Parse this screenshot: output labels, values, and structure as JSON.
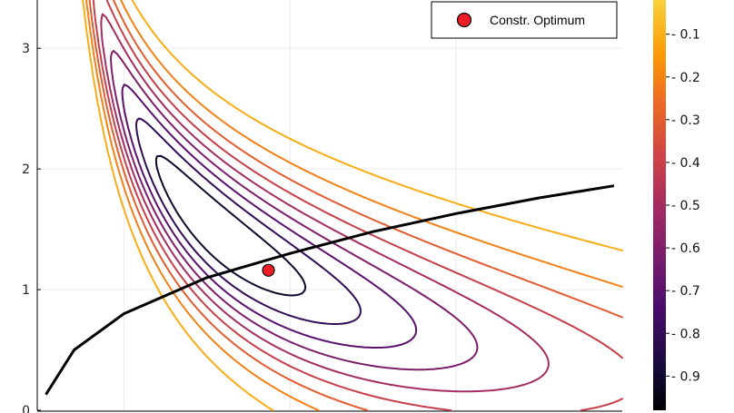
{
  "chart_data": {
    "type": "contour",
    "title": "",
    "xlabel": "",
    "ylabel": "",
    "ylim": [
      0,
      3.4
    ],
    "xlim": [
      0,
      3.5
    ],
    "grid": true,
    "y_ticks": [
      {
        "value": 0,
        "label": "0"
      },
      {
        "value": 1,
        "label": "1"
      },
      {
        "value": 2,
        "label": "2"
      },
      {
        "value": 3,
        "label": "3"
      }
    ],
    "colorbar": {
      "range": [
        -0.98,
        -0.02
      ],
      "ticks": [
        {
          "value": -0.1,
          "label": "- 0.1"
        },
        {
          "value": -0.2,
          "label": "- 0.2"
        },
        {
          "value": -0.3,
          "label": "- 0.3"
        },
        {
          "value": -0.4,
          "label": "- 0.4"
        },
        {
          "value": -0.5,
          "label": "- 0.5"
        },
        {
          "value": -0.6,
          "label": "- 0.6"
        },
        {
          "value": -0.7,
          "label": "- 0.7"
        },
        {
          "value": -0.8,
          "label": "- 0.8"
        },
        {
          "value": -0.9,
          "label": "- 0.9"
        }
      ]
    },
    "contour_levels": [
      -0.1,
      -0.2,
      -0.3,
      -0.4,
      -0.5,
      -0.6,
      -0.7,
      -0.8,
      -0.9
    ],
    "constraint_curve": {
      "color": "#000000",
      "points": [
        [
          0.03,
          0.13
        ],
        [
          0.2,
          0.5
        ],
        [
          0.5,
          0.8
        ],
        [
          1.0,
          1.1
        ],
        [
          1.5,
          1.3
        ],
        [
          2.0,
          1.48
        ],
        [
          2.5,
          1.63
        ],
        [
          3.0,
          1.76
        ],
        [
          3.45,
          1.86
        ]
      ]
    },
    "optimum": {
      "x": 1.37,
      "y": 1.16,
      "color": "#ee1c25"
    },
    "legend": {
      "position": "top-right",
      "entries": [
        {
          "name": "Constr. Optimum",
          "color": "#ee1c25",
          "marker": "circle"
        }
      ]
    }
  }
}
